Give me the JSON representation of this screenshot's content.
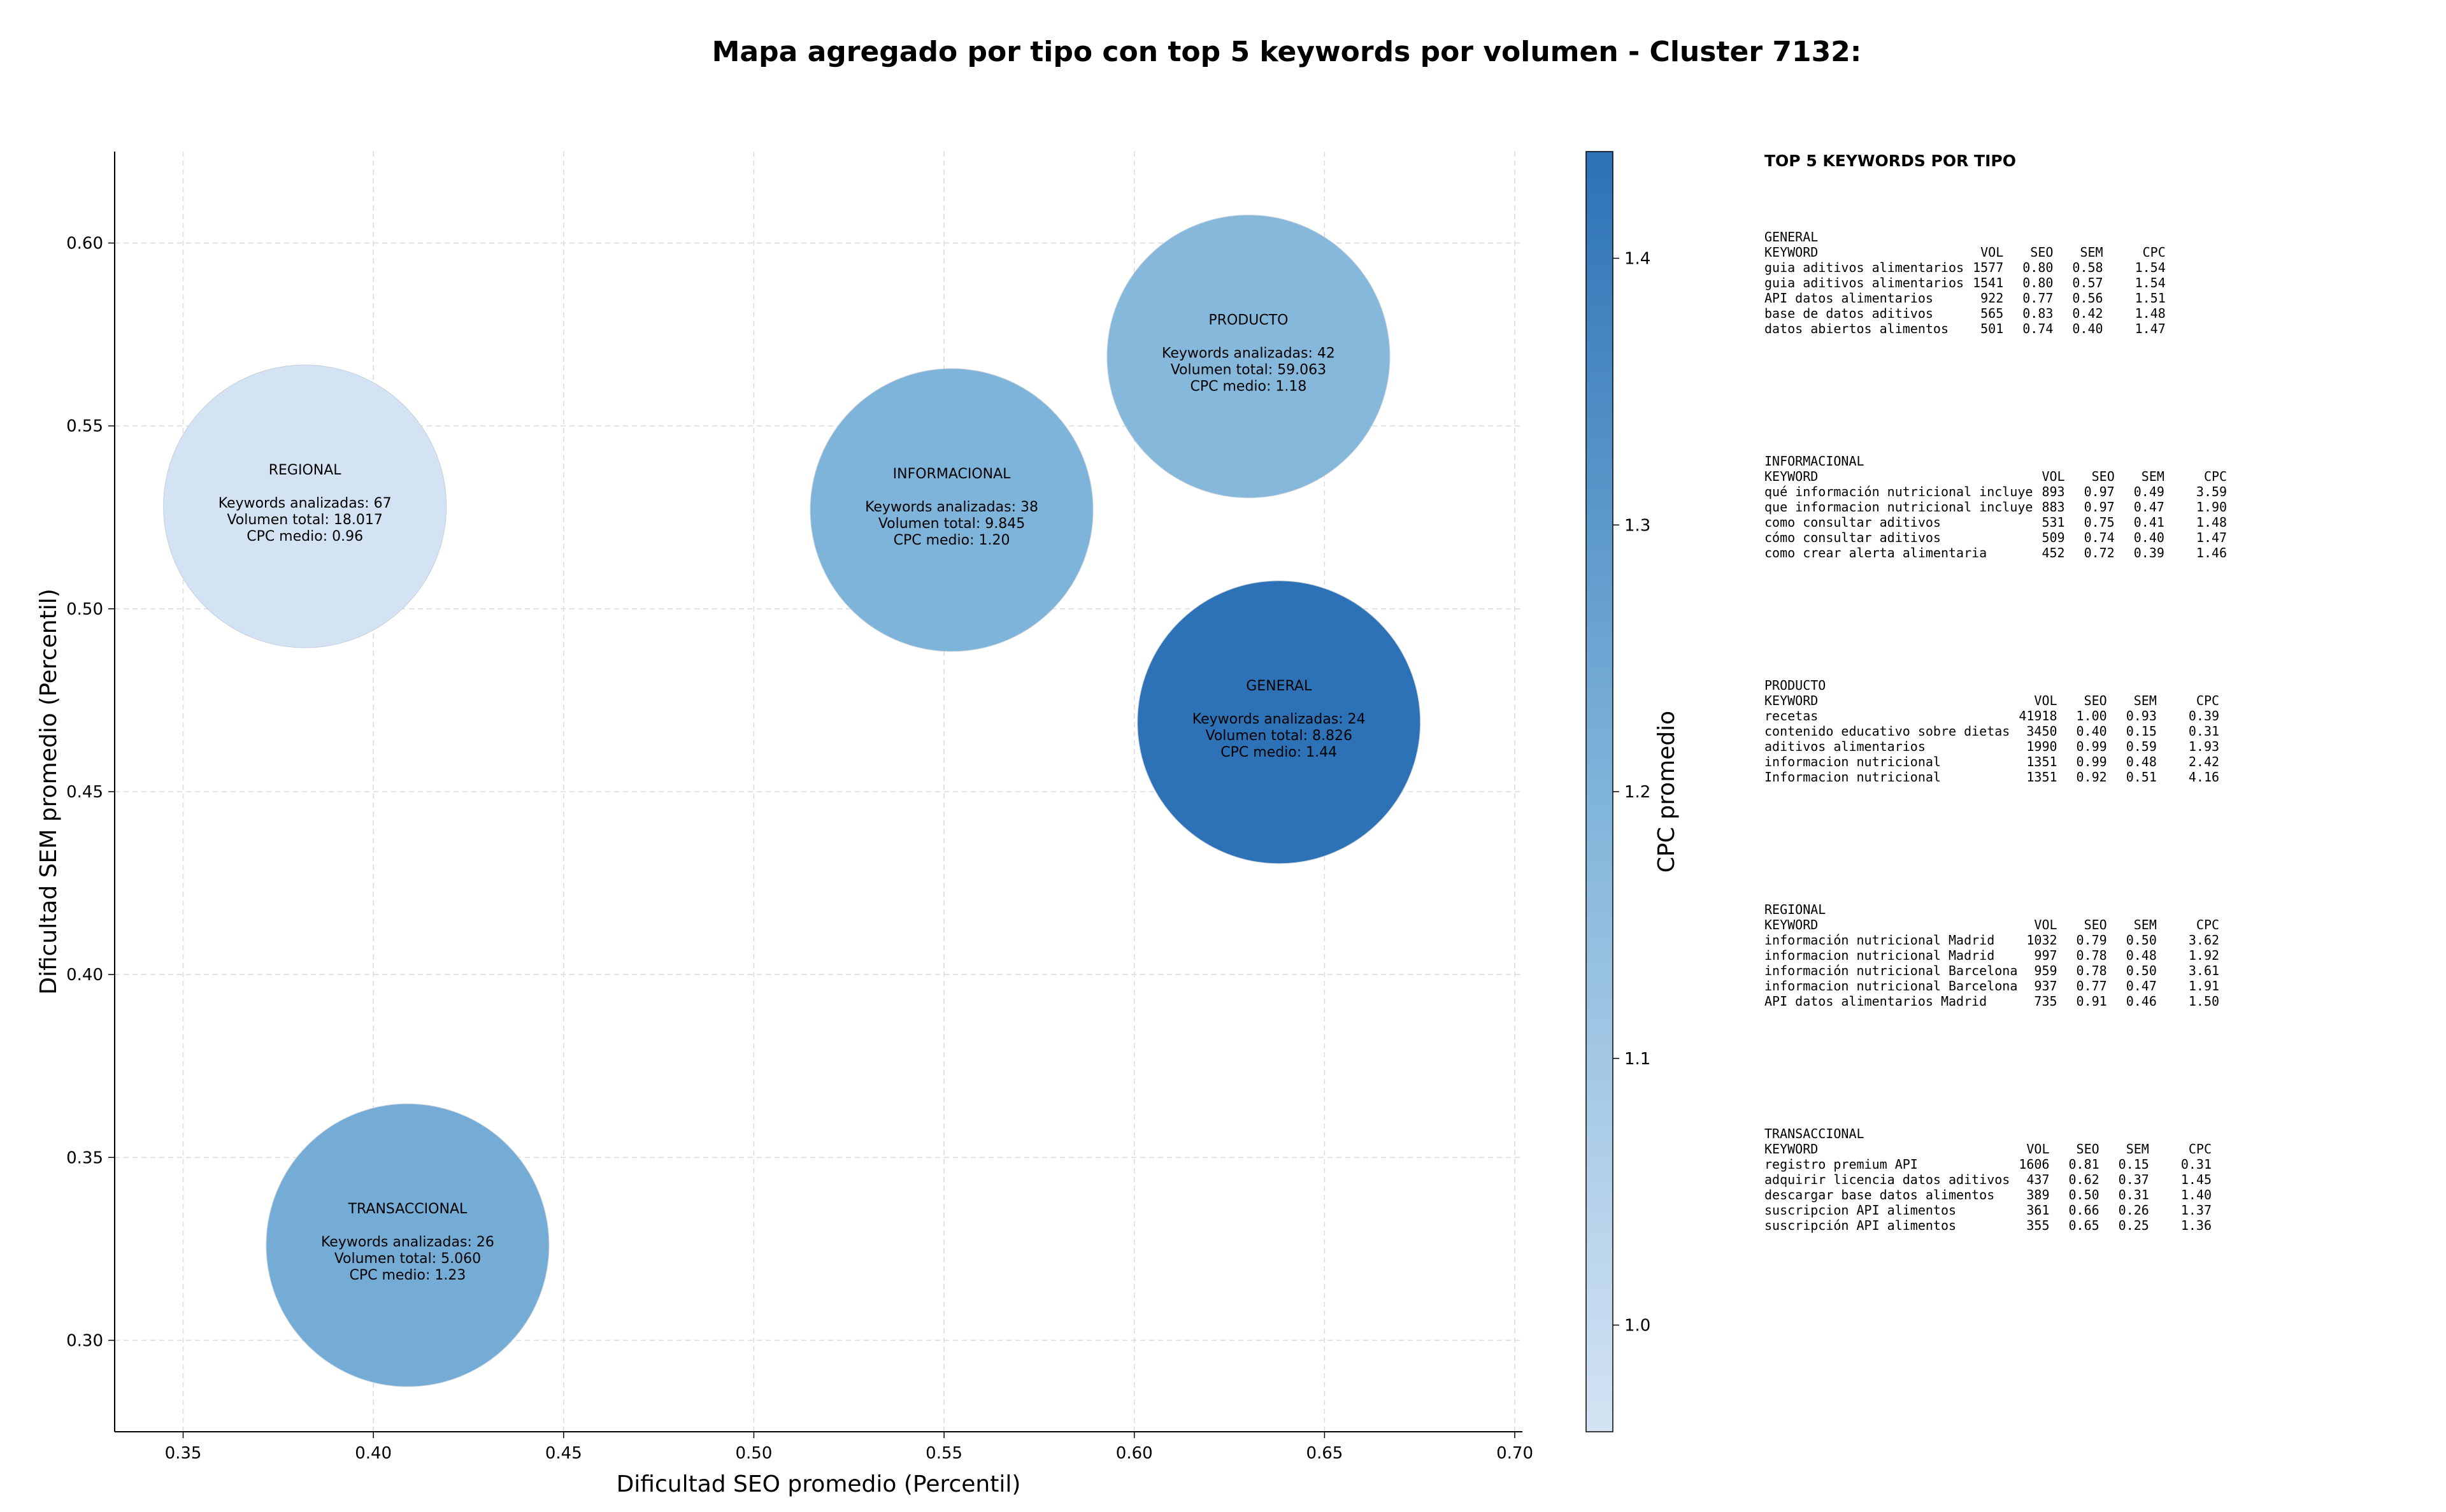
{
  "chart_data": {
    "type": "scatter",
    "title": "Mapa agregado por tipo con top 5 keywords por volumen - Cluster 7132:",
    "xlabel": "Dificultad SEO promedio (Percentil)",
    "ylabel": "Dificultad SEM promedio (Percentil)",
    "xlim": [
      0.332,
      0.702
    ],
    "ylim": [
      0.275,
      0.625
    ],
    "xticks": [
      "0.35",
      "0.40",
      "0.45",
      "0.50",
      "0.55",
      "0.60",
      "0.65",
      "0.70"
    ],
    "yticks": [
      "0.30",
      "0.35",
      "0.40",
      "0.45",
      "0.50",
      "0.55",
      "0.60"
    ],
    "grid": true,
    "colorbar": {
      "label": "CPC promedio",
      "range": [
        0.96,
        1.44
      ],
      "ticks": [
        "1.0",
        "1.1",
        "1.2",
        "1.3",
        "1.4"
      ],
      "colors": [
        "#d4e3f3",
        "#2d72b6"
      ]
    },
    "points": [
      {
        "tipo": "REGIONAL",
        "x": 0.382,
        "y": 0.528,
        "cpc": 0.96,
        "line1": "Keywords analizadas: 67",
        "line2": "Volumen total: 18.017",
        "line3": "CPC medio: 0.96"
      },
      {
        "tipo": "INFORMACIONAL",
        "x": 0.552,
        "y": 0.527,
        "cpc": 1.2,
        "line1": "Keywords analizadas: 38",
        "line2": "Volumen total: 9.845",
        "line3": "CPC medio: 1.20"
      },
      {
        "tipo": "PRODUCTO",
        "x": 0.63,
        "y": 0.569,
        "cpc": 1.18,
        "line1": "Keywords analizadas: 42",
        "line2": "Volumen total: 59.063",
        "line3": "CPC medio: 1.18"
      },
      {
        "tipo": "GENERAL",
        "x": 0.638,
        "y": 0.469,
        "cpc": 1.44,
        "line1": "Keywords analizadas: 24",
        "line2": "Volumen total: 8.826",
        "line3": "CPC medio: 1.44"
      },
      {
        "tipo": "TRANSACCIONAL",
        "x": 0.409,
        "y": 0.326,
        "cpc": 1.23,
        "line1": "Keywords analizadas: 26",
        "line2": "Volumen total: 5.060",
        "line3": "CPC medio: 1.23"
      }
    ]
  },
  "panel": {
    "title": "TOP 5 KEYWORDS POR TIPO",
    "headers": {
      "keyword": "KEYWORD",
      "vol": "VOL",
      "seo": "SEO",
      "sem": "SEM",
      "cpc": "CPC"
    },
    "groups": [
      {
        "tipo": "GENERAL",
        "rows": [
          {
            "keyword": "guia aditivos alimentarios",
            "vol": "1577",
            "seo": "0.80",
            "sem": "0.58",
            "cpc": "1.54"
          },
          {
            "keyword": "guia aditivos alimentarios",
            "vol": "1541",
            "seo": "0.80",
            "sem": "0.57",
            "cpc": "1.54"
          },
          {
            "keyword": "API datos alimentarios",
            "vol": "922",
            "seo": "0.77",
            "sem": "0.56",
            "cpc": "1.51"
          },
          {
            "keyword": "base de datos aditivos",
            "vol": "565",
            "seo": "0.83",
            "sem": "0.42",
            "cpc": "1.48"
          },
          {
            "keyword": "datos abiertos alimentos",
            "vol": "501",
            "seo": "0.74",
            "sem": "0.40",
            "cpc": "1.47"
          }
        ]
      },
      {
        "tipo": "INFORMACIONAL",
        "rows": [
          {
            "keyword": "qué información nutricional incluye",
            "vol": "893",
            "seo": "0.97",
            "sem": "0.49",
            "cpc": "3.59"
          },
          {
            "keyword": "que informacion nutricional incluye",
            "vol": "883",
            "seo": "0.97",
            "sem": "0.47",
            "cpc": "1.90"
          },
          {
            "keyword": "como consultar aditivos",
            "vol": "531",
            "seo": "0.75",
            "sem": "0.41",
            "cpc": "1.48"
          },
          {
            "keyword": "cómo consultar aditivos",
            "vol": "509",
            "seo": "0.74",
            "sem": "0.40",
            "cpc": "1.47"
          },
          {
            "keyword": "como crear alerta alimentaria",
            "vol": "452",
            "seo": "0.72",
            "sem": "0.39",
            "cpc": "1.46"
          }
        ]
      },
      {
        "tipo": "PRODUCTO",
        "rows": [
          {
            "keyword": "recetas",
            "vol": "41918",
            "seo": "1.00",
            "sem": "0.93",
            "cpc": "0.39"
          },
          {
            "keyword": "contenido educativo sobre dietas",
            "vol": "3450",
            "seo": "0.40",
            "sem": "0.15",
            "cpc": "0.31"
          },
          {
            "keyword": "aditivos alimentarios",
            "vol": "1990",
            "seo": "0.99",
            "sem": "0.59",
            "cpc": "1.93"
          },
          {
            "keyword": "informacion nutricional",
            "vol": "1351",
            "seo": "0.99",
            "sem": "0.48",
            "cpc": "2.42"
          },
          {
            "keyword": "Informacion nutricional",
            "vol": "1351",
            "seo": "0.92",
            "sem": "0.51",
            "cpc": "4.16"
          }
        ]
      },
      {
        "tipo": "REGIONAL",
        "rows": [
          {
            "keyword": "información nutricional Madrid",
            "vol": "1032",
            "seo": "0.79",
            "sem": "0.50",
            "cpc": "3.62"
          },
          {
            "keyword": "informacion nutricional Madrid",
            "vol": "997",
            "seo": "0.78",
            "sem": "0.48",
            "cpc": "1.92"
          },
          {
            "keyword": "información nutricional Barcelona",
            "vol": "959",
            "seo": "0.78",
            "sem": "0.50",
            "cpc": "3.61"
          },
          {
            "keyword": "informacion nutricional Barcelona",
            "vol": "937",
            "seo": "0.77",
            "sem": "0.47",
            "cpc": "1.91"
          },
          {
            "keyword": "API datos alimentarios Madrid",
            "vol": "735",
            "seo": "0.91",
            "sem": "0.46",
            "cpc": "1.50"
          }
        ]
      },
      {
        "tipo": "TRANSACCIONAL",
        "rows": [
          {
            "keyword": "registro premium API",
            "vol": "1606",
            "seo": "0.81",
            "sem": "0.15",
            "cpc": "0.31"
          },
          {
            "keyword": "adquirir licencia datos aditivos",
            "vol": "437",
            "seo": "0.62",
            "sem": "0.37",
            "cpc": "1.45"
          },
          {
            "keyword": "descargar base datos alimentos",
            "vol": "389",
            "seo": "0.50",
            "sem": "0.31",
            "cpc": "1.40"
          },
          {
            "keyword": "suscripcion API alimentos",
            "vol": "361",
            "seo": "0.66",
            "sem": "0.26",
            "cpc": "1.37"
          },
          {
            "keyword": "suscripción API alimentos",
            "vol": "355",
            "seo": "0.65",
            "sem": "0.25",
            "cpc": "1.36"
          }
        ]
      }
    ]
  }
}
